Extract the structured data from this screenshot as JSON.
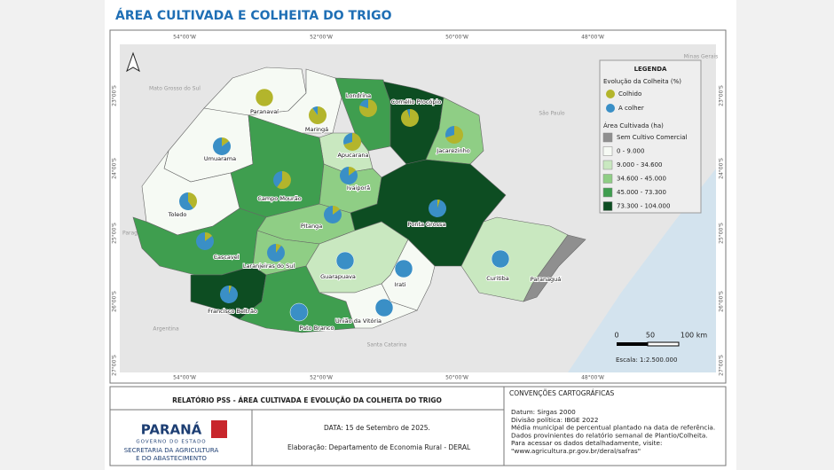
{
  "title": "ÁREA CULTIVADA E COLHEITA DO TRIGO",
  "map": {
    "longitude_labels": [
      "54°00'W",
      "52°00'W",
      "50°00'W",
      "48°00'W"
    ],
    "latitude_labels": [
      "23°00'S",
      "24°00'S",
      "25°00'S",
      "26°00'S",
      "27°00'S"
    ],
    "neighbors": [
      "Mato Grosso do Sul",
      "São Paulo",
      "Minas Gerais",
      "Paraguay",
      "Argentina",
      "Santa Catarina"
    ],
    "regions": [
      {
        "name": "Paranavaí",
        "color": "#f6faf4",
        "harvested": 100
      },
      {
        "name": "Umuarama",
        "color": "#f6faf4",
        "harvested": 15
      },
      {
        "name": "Maringá",
        "color": "#f6faf4",
        "harvested": 90
      },
      {
        "name": "Londrina",
        "color": "#3f9e4f",
        "harvested": 80
      },
      {
        "name": "Cornélio Procópio",
        "color": "#0d4d22",
        "harvested": 95
      },
      {
        "name": "Jacarezinho",
        "color": "#8fce85",
        "harvested": 70
      },
      {
        "name": "Apucarana",
        "color": "#c9e8c0",
        "harvested": 70
      },
      {
        "name": "Campo Mourão",
        "color": "#3f9e4f",
        "harvested": 60
      },
      {
        "name": "Ivaiporã",
        "color": "#8fce85",
        "harvested": 15
      },
      {
        "name": "Toledo",
        "color": "#f6faf4",
        "harvested": 40
      },
      {
        "name": "Cascavel",
        "color": "#3f9e4f",
        "harvested": 15
      },
      {
        "name": "Pitanga",
        "color": "#8fce85",
        "harvested": 15
      },
      {
        "name": "Ponta Grossa",
        "color": "#0d4d22",
        "harvested": 5
      },
      {
        "name": "Laranjeiras do Sul",
        "color": "#8fce85",
        "harvested": 10
      },
      {
        "name": "Guarapuava",
        "color": "#c9e8c0",
        "harvested": 0
      },
      {
        "name": "Irati",
        "color": "#f6faf4",
        "harvested": 0
      },
      {
        "name": "Curitiba",
        "color": "#c9e8c0",
        "harvested": 0
      },
      {
        "name": "Paranaguá",
        "color": "#8f8f8f",
        "harvested": null
      },
      {
        "name": "Francisco Beltrão",
        "color": "#0d4d22",
        "harvested": 5
      },
      {
        "name": "Pato Branco",
        "color": "#3f9e4f",
        "harvested": 0
      },
      {
        "name": "União da Vitória",
        "color": "#f6faf4",
        "harvested": 0
      }
    ],
    "legend": {
      "title": "LEGENDA",
      "harvest_title": "Evolução da Colheita (%)",
      "harvest_items": [
        {
          "label": "Colhido",
          "color": "#b3b52c"
        },
        {
          "label": "A colher",
          "color": "#3a8fc6"
        }
      ],
      "area_title": "Área Cultivada (ha)",
      "area_items": [
        {
          "label": "Sem Cultivo Comercial",
          "color": "#8f8f8f"
        },
        {
          "label": "0 - 9.000",
          "color": "#f6faf4"
        },
        {
          "label": "9.000 - 34.600",
          "color": "#c9e8c0"
        },
        {
          "label": "34.600 - 45.000",
          "color": "#8fce85"
        },
        {
          "label": "45.000 - 73.300",
          "color": "#3f9e4f"
        },
        {
          "label": "73.300 - 104.000",
          "color": "#0d4d22"
        }
      ]
    },
    "scale": {
      "labels": [
        "0",
        "50",
        "100 km"
      ],
      "text": "Escala: 1:2.500.000"
    }
  },
  "footer": {
    "report_title": "RELATÓRIO PSS - ÁREA CULTIVADA E EVOLUÇÃO DA COLHEITA DO TRIGO",
    "logo": [
      "PARANÁ",
      "GOVERNO DO ESTADO",
      "SECRETARIA DA AGRICULTURA",
      "E DO ABASTECIMENTO"
    ],
    "date": "DATA:  15 de Setembro de 2025.",
    "author": "Elaboração: Departamento de Economia Rural - DERAL",
    "conventions_title": "CONVENÇÕES CARTOGRÁFICAS",
    "conventions": [
      "Datum: Sirgas 2000",
      "Divisão política: IBGE 2022",
      "Média municipal de percentual plantado na data de referência.",
      "Dados provinientes do relatório semanal de Plantio/Colheita.",
      "Para acessar os dados detalhadamente, visite:",
      "\"www.agricultura.pr.gov.br/deral/safras\""
    ]
  }
}
